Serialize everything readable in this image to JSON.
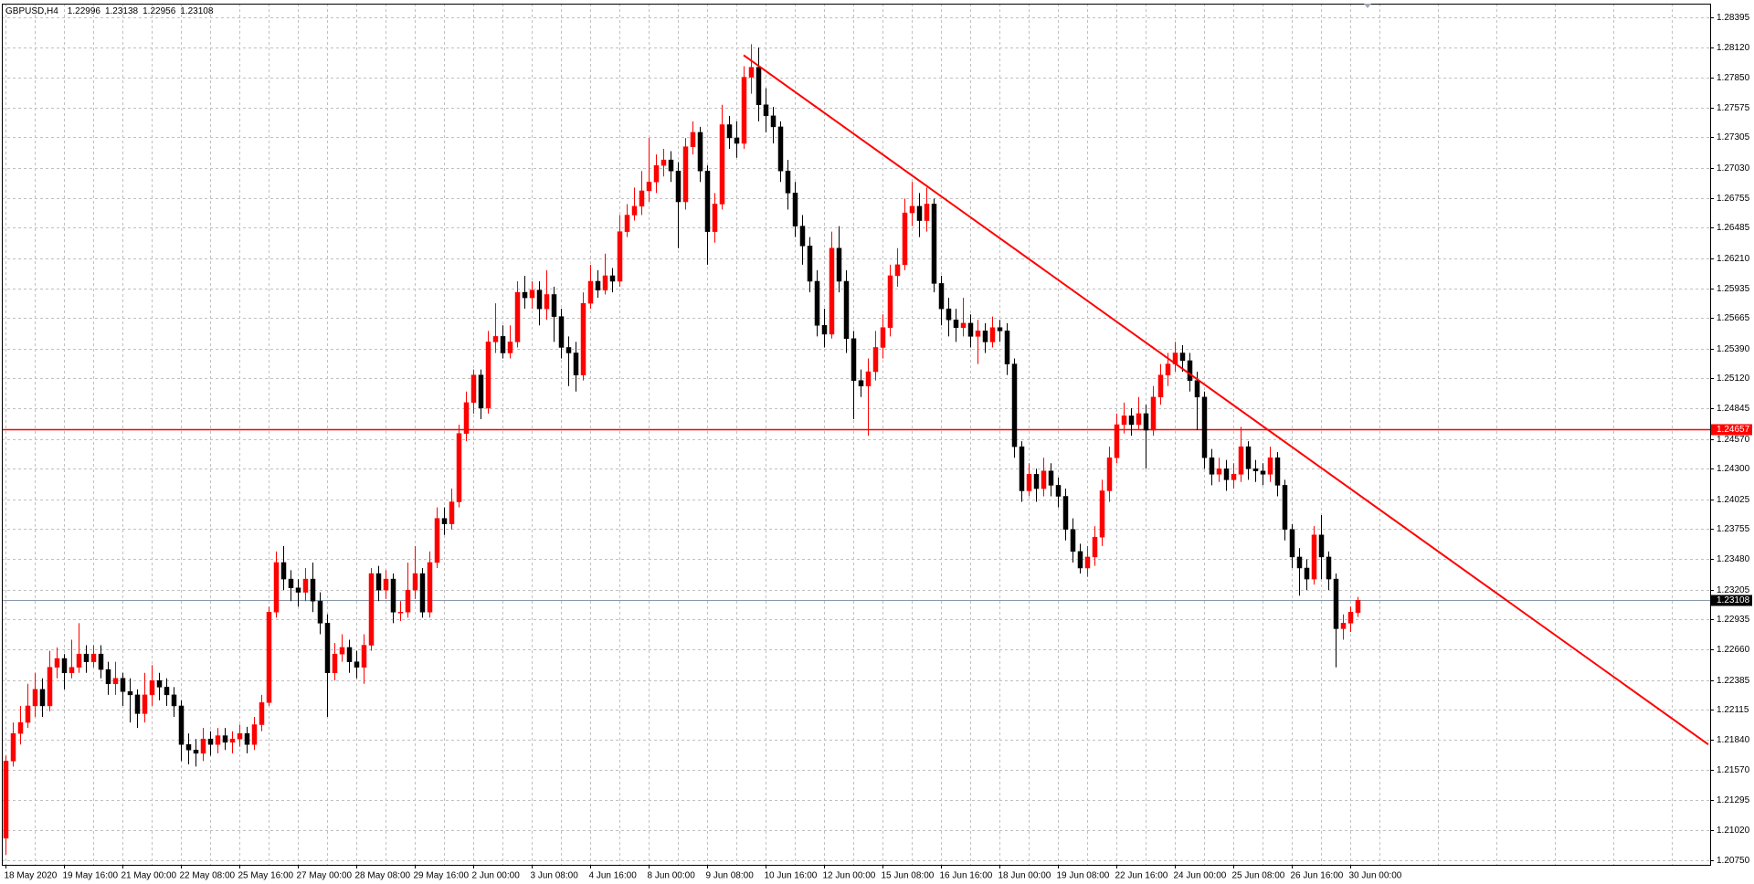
{
  "chart_data": {
    "type": "candlestick",
    "symbol": "GBPUSD,H4",
    "up_color": "#ff0000",
    "down_color": "#000000",
    "grid": true,
    "ylim": [
      1.20709,
      1.28517
    ],
    "yticks": [
      1.28395,
      {
        "value": 1.2812,
        "label": "1.28120"
      },
      {
        "value": 1.2785,
        "label": "1.27850"
      },
      1.27575,
      1.27305,
      {
        "value": 1.2703,
        "label": "1.27030"
      },
      1.26755,
      1.26485,
      {
        "value": 1.2621,
        "label": "1.26210"
      },
      1.25935,
      1.25665,
      {
        "value": 1.2539,
        "label": "1.25390"
      },
      {
        "value": 1.2512,
        "label": "1.25120"
      },
      1.24845,
      {
        "value": 1.2457,
        "label": "1.24570"
      },
      {
        "value": 1.243,
        "label": "1.24300"
      },
      1.24025,
      1.23755,
      {
        "value": 1.2348,
        "label": "1.23480"
      },
      1.23205,
      1.22935,
      {
        "value": 1.2266,
        "label": "1.22660"
      },
      1.22385,
      1.22115,
      {
        "value": 1.2184,
        "label": "1.21840"
      },
      {
        "value": 1.2157,
        "label": "1.21570"
      },
      1.21295,
      {
        "value": 1.2102,
        "label": "1.21020"
      },
      {
        "value": 1.2075,
        "label": "1.20750"
      }
    ],
    "x_labels": [
      "18 May 2020",
      "19 May 16:00",
      "21 May 00:00",
      "22 May 08:00",
      "25 May 16:00",
      "27 May 00:00",
      "28 May 08:00",
      "29 May 16:00",
      "2 Jun 00:00",
      "3 Jun 08:00",
      "4 Jun 16:00",
      "8 Jun 00:00",
      "9 Jun 08:00",
      "10 Jun 16:00",
      "12 Jun 00:00",
      "15 Jun 08:00",
      "16 Jun 16:00",
      "18 Jun 00:00",
      "19 Jun 08:00",
      "22 Jun 16:00",
      "24 Jun 00:00",
      "25 Jun 08:00",
      "26 Jun 16:00",
      "30 Jun 00:00"
    ],
    "hline": {
      "value": 1.24657,
      "color": "#ff0000"
    },
    "trendline": {
      "index": [
        101,
        233
      ],
      "price": [
        1.2805,
        1.218
      ],
      "color": "#ff0000"
    },
    "open": [
      1.2095,
      1.2165,
      1.219,
      1.22,
      1.2215,
      1.223,
      1.2215,
      1.225,
      1.2258,
      1.2245,
      1.225,
      1.2262,
      1.2255,
      1.2262,
      1.2248,
      1.2235,
      1.224,
      1.2228,
      1.2225,
      1.2208,
      1.2225,
      1.2238,
      1.2232,
      1.2225,
      1.2215,
      1.218,
      1.2175,
      1.2172,
      1.2185,
      1.218,
      1.2188,
      1.2182,
      1.2185,
      1.219,
      1.218,
      1.2198,
      1.2218,
      1.23,
      1.2345,
      1.233,
      1.2322,
      1.2318,
      1.233,
      1.231,
      1.229,
      1.2245,
      1.2262,
      1.2268,
      1.2255,
      1.225,
      1.227,
      1.2335,
      1.232,
      1.233,
      1.23,
      1.23,
      1.232,
      1.2335,
      1.23,
      1.2345,
      1.2385,
      1.238,
      1.24,
      1.2462,
      1.249,
      1.2515,
      1.2485,
      1.2545,
      1.255,
      1.2535,
      1.2545,
      1.259,
      1.2585,
      1.2592,
      1.2575,
      1.2588,
      1.2568,
      1.254,
      1.2535,
      1.2515,
      1.258,
      1.26,
      1.2592,
      1.2605,
      1.26,
      1.2645,
      1.266,
      1.2668,
      1.2682,
      1.269,
      1.2705,
      1.271,
      1.27,
      1.2672,
      1.2722,
      1.2735,
      1.27,
      1.2645,
      1.267,
      1.2742,
      1.273,
      1.2725,
      1.2785,
      1.2794,
      1.276,
      1.275,
      1.274,
      1.27,
      1.268,
      1.265,
      1.2632,
      1.26,
      1.256,
      1.2552,
      1.263,
      1.26,
      1.2548,
      1.251,
      1.2505,
      1.2518,
      1.254,
      1.2558,
      1.2605,
      1.2615,
      1.2662,
      1.2668,
      1.2655,
      1.267,
      1.2598,
      1.2575,
      1.2565,
      1.2558,
      1.2562,
      1.255,
      1.2555,
      1.2545,
      1.2558,
      1.2555,
      1.2525,
      1.245,
      1.241,
      1.2425,
      1.2412,
      1.2428,
      1.2415,
      1.2405,
      1.2375,
      1.2355,
      1.234,
      1.235,
      1.2368,
      1.241,
      1.244,
      1.247,
      1.2478,
      1.247,
      1.248,
      1.2465,
      1.2495,
      1.2515,
      1.2525,
      1.2535,
      1.2528,
      1.251,
      1.2495,
      1.244,
      1.2425,
      1.243,
      1.242,
      1.2425,
      1.245,
      1.243,
      1.2428,
      1.2425,
      1.244,
      1.2415,
      1.2375,
      1.235,
      1.234,
      1.233,
      1.237,
      1.235,
      1.233,
      1.2285,
      1.229,
      1.22996
    ],
    "high": [
      1.217,
      1.22,
      1.2215,
      1.2235,
      1.2245,
      1.224,
      1.2265,
      1.2268,
      1.2262,
      1.2275,
      1.229,
      1.227,
      1.227,
      1.227,
      1.2255,
      1.2255,
      1.2245,
      1.224,
      1.223,
      1.2245,
      1.2252,
      1.2245,
      1.224,
      1.2232,
      1.222,
      1.219,
      1.2185,
      1.2195,
      1.2192,
      1.2195,
      1.2195,
      1.2192,
      1.2198,
      1.2196,
      1.2205,
      1.2225,
      1.2305,
      1.2355,
      1.236,
      1.2338,
      1.233,
      1.234,
      1.2345,
      1.2318,
      1.2298,
      1.2272,
      1.228,
      1.2275,
      1.2265,
      1.228,
      1.234,
      1.2342,
      1.2338,
      1.2335,
      1.231,
      1.2345,
      1.236,
      1.234,
      1.2355,
      1.2395,
      1.2395,
      1.2412,
      1.247,
      1.25,
      1.252,
      1.252,
      1.2555,
      1.258,
      1.256,
      1.256,
      1.26,
      1.2605,
      1.26,
      1.26,
      1.261,
      1.2595,
      1.2575,
      1.255,
      1.2545,
      1.259,
      1.2615,
      1.261,
      1.2625,
      1.2612,
      1.266,
      1.267,
      1.2685,
      1.27,
      1.273,
      1.2715,
      1.272,
      1.2718,
      1.2708,
      1.273,
      1.2745,
      1.274,
      1.2705,
      1.268,
      1.276,
      1.275,
      1.2745,
      1.2795,
      1.2815,
      1.2812,
      1.2775,
      1.2758,
      1.2745,
      1.271,
      1.269,
      1.266,
      1.264,
      1.261,
      1.2575,
      1.2645,
      1.265,
      1.261,
      1.2555,
      1.252,
      1.253,
      1.2555,
      1.257,
      1.2615,
      1.263,
      1.2675,
      1.269,
      1.268,
      1.2685,
      1.2675,
      1.2605,
      1.2585,
      1.2575,
      1.2585,
      1.257,
      1.2565,
      1.2562,
      1.2568,
      1.2565,
      1.2562,
      1.253,
      1.2455,
      1.2435,
      1.243,
      1.244,
      1.2435,
      1.2422,
      1.2412,
      1.2385,
      1.2362,
      1.236,
      1.2378,
      1.242,
      1.245,
      1.248,
      1.249,
      1.2485,
      1.2495,
      1.2488,
      1.2505,
      1.2525,
      1.2535,
      1.2545,
      1.2542,
      1.2535,
      1.2518,
      1.25,
      1.2448,
      1.244,
      1.2438,
      1.2435,
      1.2468,
      1.2455,
      1.2438,
      1.2435,
      1.245,
      1.2445,
      1.242,
      1.238,
      1.2358,
      1.2348,
      1.2378,
      1.2388,
      1.2355,
      1.2335,
      1.2298,
      1.2305,
      1.23138
    ],
    "low": [
      1.208,
      1.216,
      1.218,
      1.2195,
      1.2205,
      1.2205,
      1.221,
      1.224,
      1.223,
      1.224,
      1.2245,
      1.2245,
      1.225,
      1.224,
      1.2225,
      1.2225,
      1.2215,
      1.22,
      1.2195,
      1.22,
      1.2215,
      1.222,
      1.2215,
      1.2205,
      1.2165,
      1.2162,
      1.216,
      1.2165,
      1.217,
      1.2172,
      1.2175,
      1.2172,
      1.2178,
      1.2172,
      1.2175,
      1.2192,
      1.2215,
      1.2295,
      1.232,
      1.231,
      1.2305,
      1.231,
      1.23,
      1.228,
      1.2205,
      1.2238,
      1.2255,
      1.2245,
      1.224,
      1.2235,
      1.2265,
      1.231,
      1.2312,
      1.229,
      1.2292,
      1.2295,
      1.2312,
      1.2295,
      1.2295,
      1.234,
      1.237,
      1.2375,
      1.2395,
      1.2455,
      1.248,
      1.2475,
      1.248,
      1.2535,
      1.253,
      1.253,
      1.254,
      1.2575,
      1.2575,
      1.256,
      1.2565,
      1.2545,
      1.253,
      1.2505,
      1.25,
      1.251,
      1.2575,
      1.2585,
      1.2588,
      1.259,
      1.2595,
      1.264,
      1.2655,
      1.266,
      1.2672,
      1.268,
      1.2695,
      1.269,
      1.263,
      1.2665,
      1.2715,
      1.269,
      1.2615,
      1.2635,
      1.2665,
      1.272,
      1.2712,
      1.272,
      1.277,
      1.2745,
      1.2735,
      1.2725,
      1.269,
      1.2665,
      1.264,
      1.2615,
      1.259,
      1.255,
      1.254,
      1.2548,
      1.259,
      1.2535,
      1.2475,
      1.2495,
      1.246,
      1.251,
      1.253,
      1.255,
      1.2595,
      1.261,
      1.265,
      1.264,
      1.2645,
      1.259,
      1.256,
      1.255,
      1.2545,
      1.255,
      1.254,
      1.2525,
      1.2535,
      1.254,
      1.2545,
      1.2515,
      1.244,
      1.24,
      1.2405,
      1.24,
      1.2405,
      1.2405,
      1.2395,
      1.2365,
      1.2345,
      1.2335,
      1.2332,
      1.2342,
      1.236,
      1.24,
      1.2435,
      1.2462,
      1.246,
      1.2465,
      1.243,
      1.246,
      1.2488,
      1.2505,
      1.2518,
      1.2518,
      1.25,
      1.2465,
      1.243,
      1.2415,
      1.2418,
      1.241,
      1.2412,
      1.2418,
      1.242,
      1.2418,
      1.2415,
      1.2418,
      1.2405,
      1.2365,
      1.234,
      1.2315,
      1.232,
      1.2325,
      1.233,
      1.232,
      1.225,
      1.2275,
      1.2282,
      1.22956
    ],
    "close": [
      1.2165,
      1.219,
      1.22,
      1.2215,
      1.223,
      1.2215,
      1.225,
      1.2258,
      1.2245,
      1.225,
      1.2262,
      1.2255,
      1.2262,
      1.2248,
      1.2235,
      1.224,
      1.2228,
      1.2225,
      1.2208,
      1.2225,
      1.2238,
      1.2232,
      1.2225,
      1.2215,
      1.218,
      1.2175,
      1.2172,
      1.2185,
      1.218,
      1.2188,
      1.2182,
      1.2185,
      1.219,
      1.218,
      1.2198,
      1.2218,
      1.23,
      1.2345,
      1.233,
      1.2322,
      1.2318,
      1.233,
      1.231,
      1.229,
      1.2245,
      1.2262,
      1.2268,
      1.2255,
      1.225,
      1.227,
      1.2335,
      1.232,
      1.233,
      1.23,
      1.23,
      1.232,
      1.2335,
      1.23,
      1.2345,
      1.2385,
      1.238,
      1.24,
      1.2462,
      1.249,
      1.2515,
      1.2485,
      1.2545,
      1.255,
      1.2535,
      1.2545,
      1.259,
      1.2585,
      1.2592,
      1.2575,
      1.2588,
      1.2568,
      1.254,
      1.2535,
      1.2515,
      1.258,
      1.26,
      1.2592,
      1.2605,
      1.26,
      1.2645,
      1.266,
      1.2668,
      1.2682,
      1.269,
      1.2705,
      1.271,
      1.27,
      1.2672,
      1.2722,
      1.2735,
      1.27,
      1.2645,
      1.267,
      1.2742,
      1.273,
      1.2725,
      1.2785,
      1.2794,
      1.276,
      1.275,
      1.274,
      1.27,
      1.268,
      1.265,
      1.2632,
      1.26,
      1.256,
      1.2552,
      1.263,
      1.26,
      1.2548,
      1.251,
      1.2505,
      1.2518,
      1.254,
      1.2558,
      1.2605,
      1.2615,
      1.2662,
      1.2668,
      1.2655,
      1.267,
      1.2598,
      1.2575,
      1.2565,
      1.2558,
      1.2562,
      1.255,
      1.2555,
      1.2545,
      1.2558,
      1.2555,
      1.2525,
      1.245,
      1.241,
      1.2425,
      1.2412,
      1.2428,
      1.2415,
      1.2405,
      1.2375,
      1.2355,
      1.234,
      1.235,
      1.2368,
      1.241,
      1.244,
      1.247,
      1.2478,
      1.247,
      1.248,
      1.2465,
      1.2495,
      1.2515,
      1.2525,
      1.2535,
      1.2528,
      1.251,
      1.2495,
      1.244,
      1.2425,
      1.243,
      1.242,
      1.2425,
      1.245,
      1.243,
      1.2428,
      1.2425,
      1.244,
      1.2415,
      1.2375,
      1.235,
      1.234,
      1.233,
      1.237,
      1.235,
      1.233,
      1.2285,
      1.229,
      1.23,
      1.23108
    ]
  }
}
